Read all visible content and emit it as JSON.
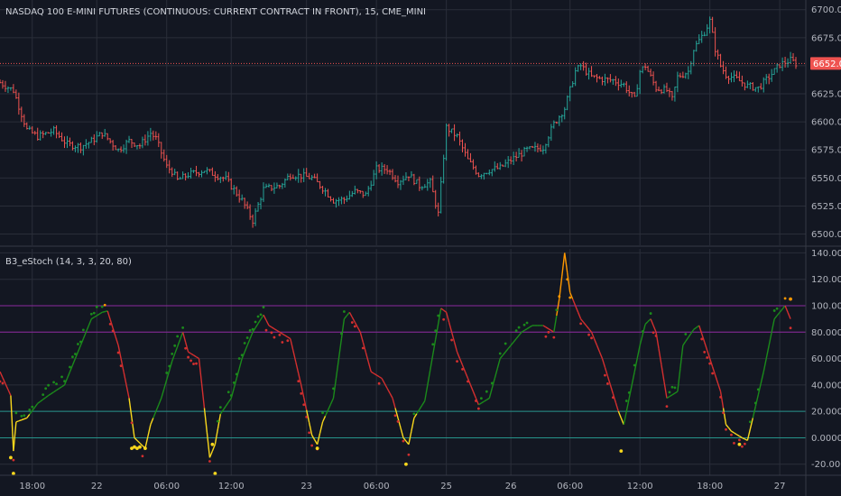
{
  "colors": {
    "background": "#131722",
    "grid": "#2a2e39",
    "axis_line": "#3b3f4a",
    "up": "#26a69a",
    "down": "#ef5350",
    "price_line": "#ef5350",
    "k_up": "#1b8a1b",
    "k_down": "#d32f2f",
    "k_os": "#f9d71c",
    "k_ob": "#ff9800",
    "hline_80_100": "#9c27b0",
    "hline_0_20": "#26a69a"
  },
  "main_pane": {
    "title": "NASDAQ 100 E-MINI FUTURES (CONTINUOUS: CURRENT CONTRACT IN FRONT), 15, CME_MINI",
    "current_price": "6652.00",
    "y_ticks": [
      "6700.00",
      "6675.00",
      "6650.00",
      "6625.00",
      "6600.00",
      "6575.00",
      "6550.00",
      "6525.00",
      "6500.00"
    ]
  },
  "indicator_pane": {
    "title": "B3_eStoch (14, 3, 3, 20, 80)",
    "y_ticks": [
      "140.0000",
      "120.0000",
      "100.0000",
      "80.0000",
      "60.0000",
      "40.0000",
      "20.0000",
      "0.0000",
      "-20.0000"
    ]
  },
  "x_ticks": [
    "18:00",
    "22",
    "06:00",
    "12:00",
    "23",
    "06:00",
    "25",
    "26",
    "06:00",
    "12:00",
    "18:00",
    "27"
  ],
  "chart_data": [
    {
      "type": "candlestick",
      "title": "NASDAQ 100 E-MINI FUTURES (CONTINUOUS: CURRENT CONTRACT IN FRONT), 15, CME_MINI",
      "ylim": [
        6490,
        6707
      ],
      "last_price": 6652,
      "anchors": [
        [
          0,
          6635
        ],
        [
          5,
          6628
        ],
        [
          10,
          6593
        ],
        [
          14,
          6587
        ],
        [
          20,
          6592
        ],
        [
          25,
          6580
        ],
        [
          30,
          6578
        ],
        [
          34,
          6583
        ],
        [
          38,
          6590
        ],
        [
          44,
          6575
        ],
        [
          48,
          6583
        ],
        [
          52,
          6579
        ],
        [
          56,
          6590
        ],
        [
          58,
          6585
        ],
        [
          62,
          6560
        ],
        [
          64,
          6556
        ],
        [
          66,
          6548
        ],
        [
          70,
          6553
        ],
        [
          76,
          6557
        ],
        [
          80,
          6553
        ],
        [
          84,
          6549
        ],
        [
          90,
          6530
        ],
        [
          94,
          6512
        ],
        [
          98,
          6540
        ],
        [
          104,
          6543
        ],
        [
          108,
          6553
        ],
        [
          112,
          6552
        ],
        [
          116,
          6550
        ],
        [
          120,
          6541
        ],
        [
          124,
          6530
        ],
        [
          128,
          6531
        ],
        [
          132,
          6538
        ],
        [
          136,
          6535
        ],
        [
          140,
          6558
        ],
        [
          144,
          6558
        ],
        [
          148,
          6547
        ],
        [
          152,
          6553
        ],
        [
          156,
          6543
        ],
        [
          160,
          6546
        ],
        [
          163,
          6518
        ],
        [
          166,
          6595
        ],
        [
          170,
          6587
        ],
        [
          174,
          6566
        ],
        [
          178,
          6553
        ],
        [
          182,
          6557
        ],
        [
          186,
          6559
        ],
        [
          190,
          6566
        ],
        [
          196,
          6575
        ],
        [
          202,
          6577
        ],
        [
          204,
          6588
        ],
        [
          206,
          6598
        ],
        [
          210,
          6612
        ],
        [
          214,
          6645
        ],
        [
          216,
          6650
        ],
        [
          220,
          6640
        ],
        [
          224,
          6638
        ],
        [
          228,
          6637
        ],
        [
          232,
          6633
        ],
        [
          236,
          6620
        ],
        [
          238,
          6645
        ],
        [
          240,
          6650
        ],
        [
          244,
          6630
        ],
        [
          248,
          6628
        ],
        [
          250,
          6620
        ],
        [
          252,
          6640
        ],
        [
          256,
          6645
        ],
        [
          258,
          6665
        ],
        [
          262,
          6680
        ],
        [
          264,
          6690
        ],
        [
          266,
          6665
        ],
        [
          268,
          6650
        ],
        [
          270,
          6642
        ],
        [
          274,
          6638
        ],
        [
          278,
          6632
        ],
        [
          282,
          6630
        ],
        [
          286,
          6640
        ],
        [
          290,
          6651
        ],
        [
          294,
          6655
        ],
        [
          296,
          6652
        ]
      ]
    },
    {
      "type": "scatter",
      "title": "B3_eStoch (14, 3, 3, 20, 80)",
      "ylim": [
        -27,
        143
      ],
      "hlines": [
        100,
        80,
        20,
        0
      ],
      "anchors": [
        [
          0,
          50
        ],
        [
          4,
          32
        ],
        [
          5,
          -10
        ],
        [
          6,
          12
        ],
        [
          10,
          15
        ],
        [
          14,
          26
        ],
        [
          18,
          32
        ],
        [
          24,
          40
        ],
        [
          30,
          70
        ],
        [
          34,
          90
        ],
        [
          38,
          95
        ],
        [
          40,
          96
        ],
        [
          44,
          70
        ],
        [
          48,
          30
        ],
        [
          50,
          0
        ],
        [
          54,
          -8
        ],
        [
          56,
          10
        ],
        [
          60,
          30
        ],
        [
          64,
          58
        ],
        [
          68,
          80
        ],
        [
          70,
          65
        ],
        [
          74,
          60
        ],
        [
          78,
          -15
        ],
        [
          80,
          -5
        ],
        [
          82,
          18
        ],
        [
          86,
          30
        ],
        [
          90,
          60
        ],
        [
          94,
          80
        ],
        [
          98,
          93
        ],
        [
          100,
          85
        ],
        [
          104,
          80
        ],
        [
          108,
          75
        ],
        [
          112,
          40
        ],
        [
          116,
          2
        ],
        [
          118,
          -5
        ],
        [
          120,
          12
        ],
        [
          124,
          30
        ],
        [
          128,
          90
        ],
        [
          130,
          95
        ],
        [
          134,
          80
        ],
        [
          138,
          50
        ],
        [
          142,
          45
        ],
        [
          146,
          30
        ],
        [
          150,
          0
        ],
        [
          152,
          -5
        ],
        [
          154,
          15
        ],
        [
          158,
          28
        ],
        [
          164,
          98
        ],
        [
          166,
          95
        ],
        [
          170,
          65
        ],
        [
          174,
          45
        ],
        [
          178,
          25
        ],
        [
          182,
          30
        ],
        [
          186,
          60
        ],
        [
          190,
          70
        ],
        [
          194,
          80
        ],
        [
          198,
          85
        ],
        [
          202,
          85
        ],
        [
          206,
          80
        ],
        [
          208,
          105
        ],
        [
          210,
          140
        ],
        [
          212,
          110
        ],
        [
          216,
          90
        ],
        [
          220,
          80
        ],
        [
          224,
          60
        ],
        [
          230,
          20
        ],
        [
          232,
          10
        ],
        [
          234,
          30
        ],
        [
          238,
          70
        ],
        [
          240,
          86
        ],
        [
          242,
          90
        ],
        [
          244,
          80
        ],
        [
          248,
          30
        ],
        [
          252,
          35
        ],
        [
          254,
          70
        ],
        [
          258,
          82
        ],
        [
          260,
          85
        ],
        [
          264,
          60
        ],
        [
          268,
          35
        ],
        [
          270,
          10
        ],
        [
          272,
          5
        ],
        [
          276,
          0
        ],
        [
          278,
          -2
        ],
        [
          280,
          15
        ],
        [
          284,
          50
        ],
        [
          288,
          90
        ],
        [
          292,
          100
        ],
        [
          296,
          80
        ]
      ],
      "ob_level": 80,
      "os_level": 20,
      "signal_dots": [
        [
          4,
          -15
        ],
        [
          5,
          -27
        ],
        [
          49,
          -8
        ],
        [
          50,
          -7
        ],
        [
          51,
          -8
        ],
        [
          52,
          -7
        ],
        [
          54,
          -8
        ],
        [
          79,
          -5
        ],
        [
          80,
          -27
        ],
        [
          118,
          -8
        ],
        [
          151,
          -20
        ],
        [
          231,
          -10
        ],
        [
          275,
          -5
        ],
        [
          294,
          105
        ]
      ]
    }
  ]
}
